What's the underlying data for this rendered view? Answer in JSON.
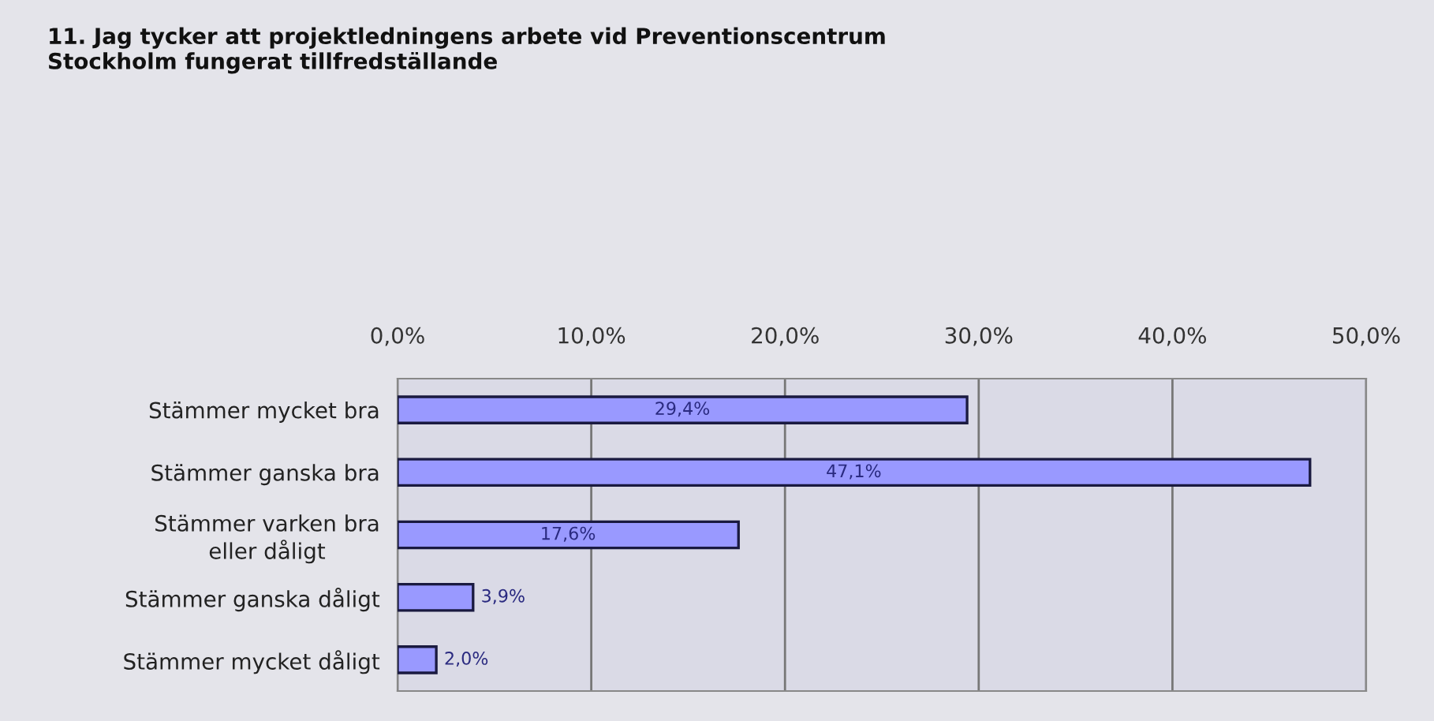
{
  "chart_data": {
    "type": "bar",
    "orientation": "horizontal",
    "title": "11. Jag tycker att projektledningens arbete vid Preventionscentrum\nStockholm fungerat tillfredställande",
    "categories": [
      "Stämmer mycket bra",
      "Stämmer ganska bra",
      "Stämmer varken bra\neller dåligt",
      "Stämmer ganska dåligt",
      "Stämmer mycket dåligt"
    ],
    "values": [
      29.4,
      47.1,
      17.6,
      3.9,
      2.0
    ],
    "value_labels": [
      "29,4%",
      "47,1%",
      "17,6%",
      "3,9%",
      "2,0%"
    ],
    "color": "#9999ff",
    "xlim": [
      0,
      50
    ],
    "xticks": [
      {
        "value": 0,
        "label": "0,0%"
      },
      {
        "value": 10,
        "label": "10,0%"
      },
      {
        "value": 20,
        "label": "20,0%"
      },
      {
        "value": 30,
        "label": "30,0%"
      },
      {
        "value": 40,
        "label": "40,0%"
      },
      {
        "value": 50,
        "label": "50,0%"
      }
    ],
    "grid": "x"
  }
}
